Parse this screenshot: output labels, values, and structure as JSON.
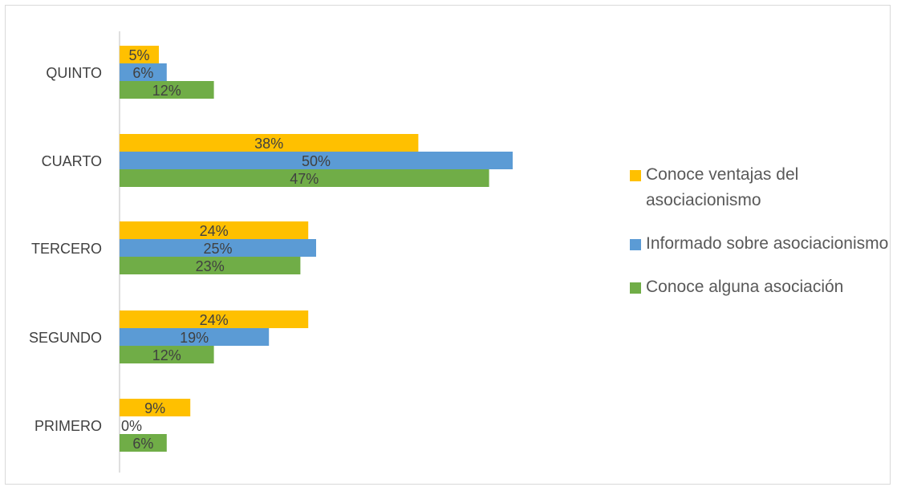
{
  "colors": {
    "gold": "#FFC000",
    "blue": "#5B9BD5",
    "green": "#70AD47",
    "axis": "#BFBFBF",
    "label": "#404040"
  },
  "chart_data": {
    "type": "bar",
    "orientation": "horizontal",
    "categories": [
      "QUINTO",
      "CUARTO",
      "TERCERO",
      "SEGUNDO",
      "PRIMERO"
    ],
    "series": [
      {
        "name": "Conoce ventajas del asociacionismo",
        "color": "#FFC000",
        "values": [
          5,
          38,
          24,
          24,
          9
        ],
        "labels": [
          "5%",
          "38%",
          "24%",
          "24%",
          "9%"
        ]
      },
      {
        "name": "Informado sobre asociacionismo",
        "color": "#5B9BD5",
        "values": [
          6,
          50,
          25,
          19,
          0
        ],
        "labels": [
          "6%",
          "50%",
          "25%",
          "19%",
          "0%"
        ]
      },
      {
        "name": "Conoce alguna asociación",
        "color": "#70AD47",
        "values": [
          12,
          47,
          23,
          12,
          6
        ],
        "labels": [
          "12%",
          "47%",
          "23%",
          "12%",
          "6%"
        ]
      }
    ],
    "value_unit": "%",
    "xlim": [
      0,
      100
    ],
    "grid": false,
    "legend_position": "right"
  }
}
